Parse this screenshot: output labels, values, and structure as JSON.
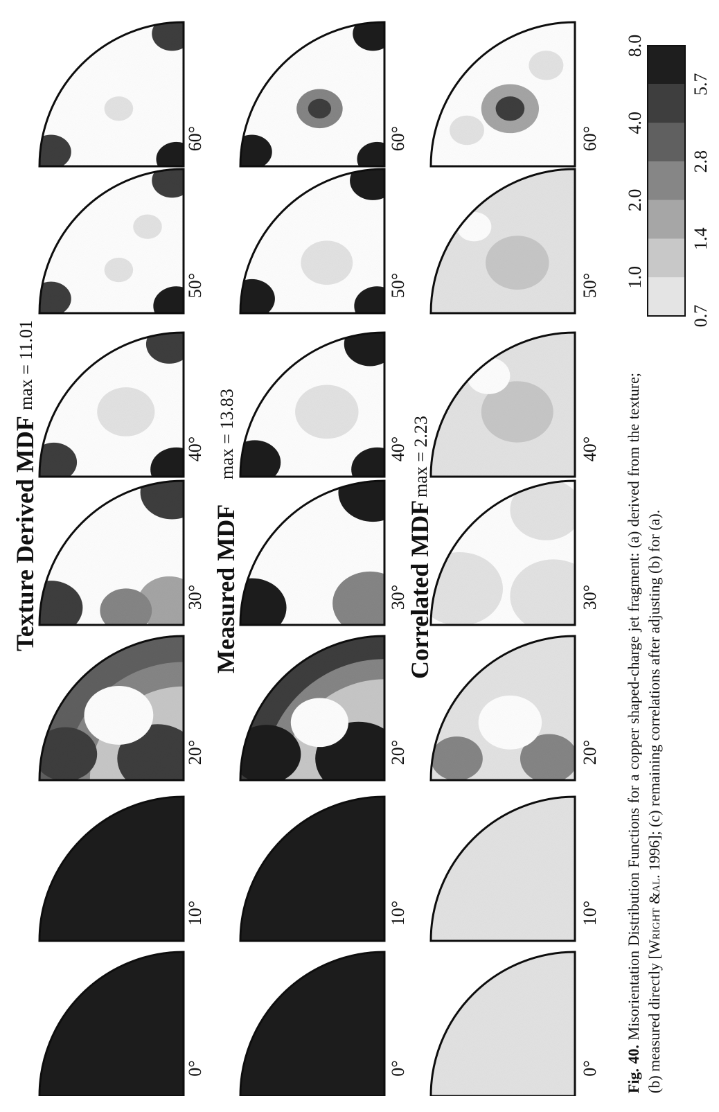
{
  "panels": [
    {
      "id": "a",
      "title": "Texture Derived MDF",
      "max_label": "max = 11.01"
    },
    {
      "id": "b",
      "title": "Measured MDF",
      "max_label": "max = 13.83"
    },
    {
      "id": "c",
      "title": "Correlated MDF",
      "max_label": "max = 2.23"
    }
  ],
  "angles": [
    "0°",
    "10°",
    "20°",
    "30°",
    "40°",
    "50°",
    "60°"
  ],
  "legend": {
    "top_labels": [
      "1.0",
      "2.0",
      "4.0",
      "8.0"
    ],
    "bottom_labels": [
      "0.7",
      "1.4",
      "2.8",
      "5.7"
    ],
    "shades": [
      "#e4e4e4",
      "#c8c8c8",
      "#a6a6a6",
      "#868686",
      "#606060",
      "#3e3e3e",
      "#1e1e1e"
    ]
  },
  "caption": {
    "fig_label": "Fig. 40.",
    "text_1": " Misorientation Distribution Functions for a copper shaped-charge jet fragment: (a) derived from the texture; (b) measured directly [",
    "author": "Wright &al.",
    "text_2": " 1996]; (c) remaining correlations after adjusting (b) for (a)."
  }
}
